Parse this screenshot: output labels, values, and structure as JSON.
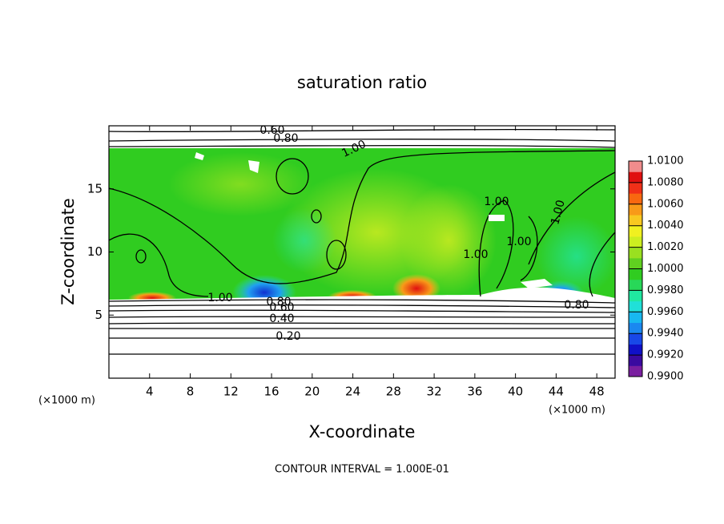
{
  "chart_data": {
    "type": "heatmap",
    "title": "saturation ratio",
    "x_label": "X-coordinate",
    "y_label": "Z-coordinate",
    "xlim": [
      0,
      49.8
    ],
    "ylim": [
      0,
      20
    ],
    "xticks": [
      4,
      8,
      12,
      16,
      20,
      24,
      28,
      32,
      36,
      40,
      44,
      48
    ],
    "yticks": [
      5,
      10,
      15
    ],
    "x_units": [
      "(×1000 m)",
      "(×1000 m)"
    ],
    "footnote": "CONTOUR INTERVAL = 1.000E-01",
    "contour_labels": [
      "0.60",
      "0.80",
      "1.00",
      "1.00",
      "1.00",
      "1.00",
      "0.80",
      "0.60",
      "0.40",
      "0.20",
      "1.00",
      "1.00",
      "0.80"
    ],
    "colorbar": {
      "lim": [
        0.99,
        1.01
      ],
      "colors": [
        "#7a1fa0",
        "#3a0aa0",
        "#1010c8",
        "#1848e8",
        "#1a88f0",
        "#18b8f0",
        "#20e0d8",
        "#20e8a0",
        "#28d858",
        "#30cc20",
        "#60d020",
        "#9ae020",
        "#ccee20",
        "#f0f020",
        "#f8c820",
        "#f89a18",
        "#f86810",
        "#f03018",
        "#e01010",
        "#f08c8c"
      ],
      "ticks": [
        {
          "value": 0.99,
          "label": "0.9900"
        },
        {
          "value": 0.992,
          "label": "0.9920"
        },
        {
          "value": 0.994,
          "label": "0.9940"
        },
        {
          "value": 0.996,
          "label": "0.9960"
        },
        {
          "value": 0.998,
          "label": "0.9980"
        },
        {
          "value": 1.0,
          "label": "1.0000"
        },
        {
          "value": 1.002,
          "label": "1.0020"
        },
        {
          "value": 1.004,
          "label": "1.0040"
        },
        {
          "value": 1.006,
          "label": "1.0060"
        },
        {
          "value": 1.008,
          "label": "1.0080"
        },
        {
          "value": 1.01,
          "label": "1.0100"
        }
      ]
    }
  }
}
